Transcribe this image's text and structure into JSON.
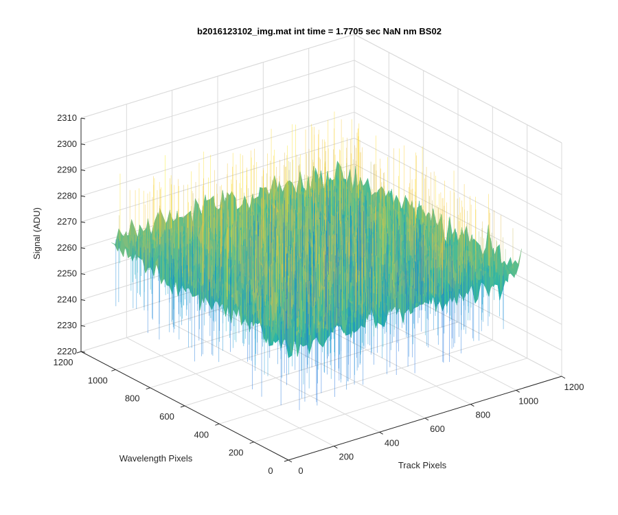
{
  "chart_data": {
    "type": "surface",
    "title": "b2016123102_img.mat int time = 1.7705 sec  NaN nm BS02",
    "xlabel": "Track Pixels",
    "ylabel": "Wavelength Pixels",
    "zlabel": "Signal (ADU)",
    "xlim": [
      0,
      1200
    ],
    "ylim": [
      0,
      1200
    ],
    "zlim": [
      2220,
      2310
    ],
    "xticks": [
      "0",
      "200",
      "400",
      "600",
      "800",
      "1000",
      "1200"
    ],
    "yticks": [
      "0",
      "200",
      "400",
      "600",
      "800",
      "1000",
      "1200"
    ],
    "zticks": [
      "2220",
      "2230",
      "2240",
      "2250",
      "2260",
      "2270",
      "2280",
      "2290",
      "2300",
      "2310"
    ],
    "data_extent": {
      "x": [
        0,
        1024
      ],
      "y": [
        0,
        1024
      ]
    },
    "mean_signal": 2265,
    "signal_range": [
      2225,
      2300
    ],
    "colormap": "parula",
    "grid": true,
    "view": "3d"
  }
}
